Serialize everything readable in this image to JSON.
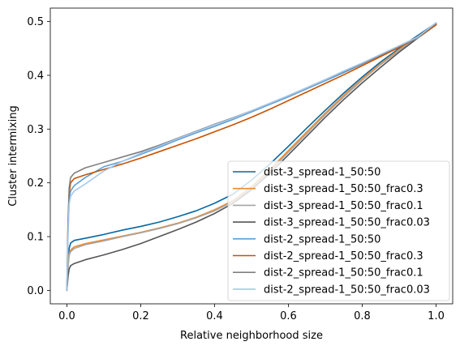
{
  "chart_data": {
    "type": "line",
    "xlabel": "Relative neighborhood size",
    "ylabel": "Cluster intermixing",
    "xlim": [
      -0.045,
      1.045
    ],
    "ylim": [
      -0.025,
      0.525
    ],
    "xticks": [
      0.0,
      0.2,
      0.4,
      0.6,
      0.8,
      1.0
    ],
    "xtick_labels": [
      "0.0",
      "0.2",
      "0.4",
      "0.6",
      "0.8",
      "1.0"
    ],
    "yticks": [
      0.0,
      0.1,
      0.2,
      0.3,
      0.4,
      0.5
    ],
    "ytick_labels": [
      "0.0",
      "0.1",
      "0.2",
      "0.3",
      "0.4",
      "0.5"
    ],
    "grid": false,
    "legend_position": "lower-right",
    "series": [
      {
        "name": "dist-3_spread-1_50:50",
        "color": "#0567a3",
        "x": [
          0,
          0.003,
          0.006,
          0.01,
          0.02,
          0.05,
          0.1,
          0.15,
          0.2,
          0.25,
          0.3,
          0.35,
          0.4,
          0.45,
          0.5,
          0.55,
          0.6,
          0.65,
          0.7,
          0.75,
          0.8,
          0.85,
          0.9,
          0.95,
          1.0
        ],
        "y": [
          0.0,
          0.05,
          0.078,
          0.088,
          0.093,
          0.097,
          0.104,
          0.112,
          0.119,
          0.127,
          0.137,
          0.148,
          0.162,
          0.179,
          0.205,
          0.235,
          0.268,
          0.302,
          0.335,
          0.367,
          0.397,
          0.425,
          0.45,
          0.474,
          0.497
        ]
      },
      {
        "name": "dist-3_spread-1_50:50_frac0.3",
        "color": "#ef8c2e",
        "x": [
          0,
          0.003,
          0.006,
          0.01,
          0.02,
          0.05,
          0.1,
          0.15,
          0.2,
          0.25,
          0.3,
          0.35,
          0.4,
          0.45,
          0.5,
          0.55,
          0.6,
          0.65,
          0.7,
          0.75,
          0.8,
          0.85,
          0.9,
          0.95,
          1.0
        ],
        "y": [
          0.0,
          0.045,
          0.068,
          0.075,
          0.081,
          0.087,
          0.094,
          0.101,
          0.108,
          0.116,
          0.125,
          0.136,
          0.15,
          0.167,
          0.193,
          0.225,
          0.26,
          0.295,
          0.33,
          0.363,
          0.394,
          0.422,
          0.448,
          0.472,
          0.496
        ]
      },
      {
        "name": "dist-3_spread-1_50:50_frac0.1",
        "color": "#a5a5a5",
        "x": [
          0,
          0.003,
          0.006,
          0.01,
          0.02,
          0.05,
          0.1,
          0.15,
          0.2,
          0.25,
          0.3,
          0.35,
          0.4,
          0.45,
          0.5,
          0.55,
          0.6,
          0.65,
          0.7,
          0.75,
          0.8,
          0.85,
          0.9,
          0.95,
          1.0
        ],
        "y": [
          0.0,
          0.042,
          0.065,
          0.072,
          0.078,
          0.085,
          0.092,
          0.1,
          0.107,
          0.115,
          0.124,
          0.135,
          0.148,
          0.165,
          0.19,
          0.222,
          0.257,
          0.292,
          0.327,
          0.36,
          0.391,
          0.42,
          0.446,
          0.471,
          0.495
        ]
      },
      {
        "name": "dist-3_spread-1_50:50_frac0.03",
        "color": "#555555",
        "x": [
          0,
          0.003,
          0.006,
          0.01,
          0.02,
          0.05,
          0.1,
          0.15,
          0.2,
          0.25,
          0.3,
          0.35,
          0.4,
          0.45,
          0.5,
          0.55,
          0.6,
          0.65,
          0.7,
          0.75,
          0.8,
          0.85,
          0.9,
          0.95,
          1.0
        ],
        "y": [
          0.0,
          0.025,
          0.04,
          0.046,
          0.05,
          0.057,
          0.066,
          0.076,
          0.087,
          0.1,
          0.113,
          0.127,
          0.143,
          0.162,
          0.187,
          0.218,
          0.252,
          0.287,
          0.322,
          0.355,
          0.386,
          0.415,
          0.443,
          0.469,
          0.494
        ]
      },
      {
        "name": "dist-2_spread-1_50:50",
        "color": "#5f9ed1",
        "x": [
          0,
          0.003,
          0.006,
          0.01,
          0.02,
          0.05,
          0.1,
          0.15,
          0.2,
          0.25,
          0.3,
          0.35,
          0.4,
          0.45,
          0.5,
          0.55,
          0.6,
          0.65,
          0.7,
          0.75,
          0.8,
          0.85,
          0.9,
          0.95,
          1.0
        ],
        "y": [
          0.0,
          0.11,
          0.17,
          0.185,
          0.195,
          0.21,
          0.23,
          0.24,
          0.253,
          0.266,
          0.28,
          0.293,
          0.305,
          0.318,
          0.332,
          0.346,
          0.36,
          0.375,
          0.39,
          0.405,
          0.421,
          0.437,
          0.453,
          0.469,
          0.497
        ]
      },
      {
        "name": "dist-2_spread-1_50:50_frac0.3",
        "color": "#c85200",
        "x": [
          0,
          0.003,
          0.006,
          0.01,
          0.02,
          0.05,
          0.1,
          0.15,
          0.2,
          0.25,
          0.3,
          0.35,
          0.4,
          0.45,
          0.5,
          0.55,
          0.6,
          0.65,
          0.7,
          0.75,
          0.8,
          0.85,
          0.9,
          0.95,
          1.0
        ],
        "y": [
          0.0,
          0.12,
          0.18,
          0.2,
          0.208,
          0.215,
          0.225,
          0.235,
          0.246,
          0.258,
          0.27,
          0.282,
          0.295,
          0.308,
          0.322,
          0.337,
          0.353,
          0.369,
          0.385,
          0.401,
          0.418,
          0.435,
          0.452,
          0.47,
          0.494
        ]
      },
      {
        "name": "dist-2_spread-1_50:50_frac0.1",
        "color": "#7f7f7f",
        "x": [
          0,
          0.003,
          0.006,
          0.01,
          0.02,
          0.05,
          0.1,
          0.15,
          0.2,
          0.25,
          0.3,
          0.35,
          0.4,
          0.45,
          0.5,
          0.55,
          0.6,
          0.65,
          0.7,
          0.75,
          0.8,
          0.85,
          0.9,
          0.95,
          1.0
        ],
        "y": [
          0.0,
          0.13,
          0.19,
          0.21,
          0.218,
          0.228,
          0.238,
          0.248,
          0.258,
          0.27,
          0.283,
          0.296,
          0.309,
          0.321,
          0.334,
          0.348,
          0.362,
          0.377,
          0.392,
          0.407,
          0.422,
          0.438,
          0.454,
          0.47,
          0.497
        ]
      },
      {
        "name": "dist-2_spread-1_50:50_frac0.03",
        "color": "#a3c8ec",
        "x": [
          0,
          0.003,
          0.006,
          0.01,
          0.02,
          0.05,
          0.1,
          0.15,
          0.2,
          0.25,
          0.3,
          0.35,
          0.4,
          0.45,
          0.5,
          0.55,
          0.6,
          0.65,
          0.7,
          0.75,
          0.8,
          0.85,
          0.9,
          0.95,
          1.0
        ],
        "y": [
          0.0,
          0.1,
          0.16,
          0.175,
          0.185,
          0.198,
          0.222,
          0.24,
          0.255,
          0.268,
          0.282,
          0.295,
          0.308,
          0.32,
          0.334,
          0.348,
          0.362,
          0.377,
          0.392,
          0.408,
          0.423,
          0.439,
          0.455,
          0.471,
          0.498
        ]
      }
    ]
  }
}
